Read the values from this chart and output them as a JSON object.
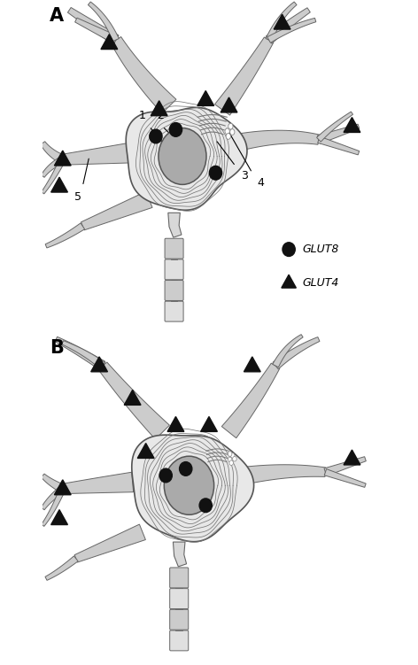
{
  "bg_color": "#ffffff",
  "branch_fill": "#cccccc",
  "branch_edge": "#666666",
  "body_fill": "#e0e0e0",
  "body_edge": "#555555",
  "nucleus_fill": "#aaaaaa",
  "nucleus_edge": "#555555",
  "er_color": "#777777",
  "golgi_color": "#777777",
  "marker_color": "#111111",
  "label_color": "#000000",
  "label_A": "A",
  "label_B": "B",
  "legend_glut8": "GLUT8",
  "legend_glut4": "GLUT4",
  "annot_color": "#000000"
}
